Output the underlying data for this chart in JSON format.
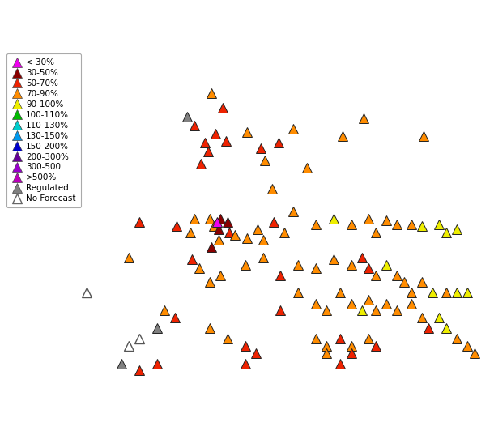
{
  "figsize": [
    6.1,
    5.53
  ],
  "dpi": 100,
  "map_extent": [
    -117.5,
    -103.5,
    35.5,
    45.5
  ],
  "legend_categories": [
    {
      "label": "< 30%",
      "color": "#EE00EE",
      "filled": true
    },
    {
      "label": "30-50%",
      "color": "#8B0000",
      "filled": true
    },
    {
      "label": "50-70%",
      "color": "#EE2200",
      "filled": true
    },
    {
      "label": "70-90%",
      "color": "#FF8C00",
      "filled": true
    },
    {
      "label": "90-100%",
      "color": "#EEEE00",
      "filled": true
    },
    {
      "label": "100-110%",
      "color": "#00BB00",
      "filled": true
    },
    {
      "label": "110-130%",
      "color": "#00CCCC",
      "filled": true
    },
    {
      "label": "130-150%",
      "color": "#0099EE",
      "filled": true
    },
    {
      "label": "150-200%",
      "color": "#0000CC",
      "filled": true
    },
    {
      "label": "200-300%",
      "color": "#660099",
      "filled": true
    },
    {
      "label": "300-500",
      "color": "#9900CC",
      "filled": true
    },
    {
      "label": ">500%",
      "color": "#BB00BB",
      "filled": true
    },
    {
      "label": "Regulated",
      "color": "#808080",
      "filled": true
    },
    {
      "label": "No Forecast",
      "color": "#808080",
      "filled": false
    }
  ],
  "gauges": [
    {
      "lon": -111.5,
      "lat": 44.2,
      "color": "#FF8C00",
      "outline": false
    },
    {
      "lon": -111.2,
      "lat": 43.8,
      "color": "#EE2200",
      "outline": false
    },
    {
      "lon": -112.2,
      "lat": 43.55,
      "color": "#808080",
      "outline": false
    },
    {
      "lon": -112.0,
      "lat": 43.3,
      "color": "#EE2200",
      "outline": false
    },
    {
      "lon": -111.4,
      "lat": 43.05,
      "color": "#EE2200",
      "outline": false
    },
    {
      "lon": -111.7,
      "lat": 42.8,
      "color": "#EE2200",
      "outline": false
    },
    {
      "lon": -111.6,
      "lat": 42.55,
      "color": "#EE2200",
      "outline": false
    },
    {
      "lon": -111.8,
      "lat": 42.2,
      "color": "#EE2200",
      "outline": false
    },
    {
      "lon": -111.1,
      "lat": 42.85,
      "color": "#EE2200",
      "outline": false
    },
    {
      "lon": -110.5,
      "lat": 43.1,
      "color": "#FF8C00",
      "outline": false
    },
    {
      "lon": -110.1,
      "lat": 42.65,
      "color": "#EE2200",
      "outline": false
    },
    {
      "lon": -110.0,
      "lat": 42.3,
      "color": "#FF8C00",
      "outline": false
    },
    {
      "lon": -109.6,
      "lat": 42.8,
      "color": "#EE2200",
      "outline": false
    },
    {
      "lon": -109.2,
      "lat": 43.2,
      "color": "#FF8C00",
      "outline": false
    },
    {
      "lon": -109.8,
      "lat": 41.5,
      "color": "#FF8C00",
      "outline": false
    },
    {
      "lon": -108.8,
      "lat": 42.1,
      "color": "#FF8C00",
      "outline": false
    },
    {
      "lon": -107.8,
      "lat": 43.0,
      "color": "#FF8C00",
      "outline": false
    },
    {
      "lon": -107.2,
      "lat": 43.5,
      "color": "#FF8C00",
      "outline": false
    },
    {
      "lon": -105.5,
      "lat": 43.0,
      "color": "#FF8C00",
      "outline": false
    },
    {
      "lon": -112.0,
      "lat": 40.65,
      "color": "#FF8C00",
      "outline": false
    },
    {
      "lon": -112.5,
      "lat": 40.45,
      "color": "#EE2200",
      "outline": false
    },
    {
      "lon": -112.1,
      "lat": 40.25,
      "color": "#FF8C00",
      "outline": false
    },
    {
      "lon": -111.55,
      "lat": 40.65,
      "color": "#FF8C00",
      "outline": false
    },
    {
      "lon": -111.45,
      "lat": 40.45,
      "color": "#FF8C00",
      "outline": false
    },
    {
      "lon": -111.25,
      "lat": 40.65,
      "color": "#8B0000",
      "outline": false
    },
    {
      "lon": -111.3,
      "lat": 40.35,
      "color": "#8B0000",
      "outline": false
    },
    {
      "lon": -111.05,
      "lat": 40.55,
      "color": "#8B0000",
      "outline": false
    },
    {
      "lon": -111.0,
      "lat": 40.25,
      "color": "#EE2200",
      "outline": false
    },
    {
      "lon": -111.3,
      "lat": 40.05,
      "color": "#FF8C00",
      "outline": false
    },
    {
      "lon": -111.5,
      "lat": 39.85,
      "color": "#8B0000",
      "outline": false
    },
    {
      "lon": -110.85,
      "lat": 40.2,
      "color": "#FF8C00",
      "outline": false
    },
    {
      "lon": -110.5,
      "lat": 40.1,
      "color": "#FF8C00",
      "outline": false
    },
    {
      "lon": -110.2,
      "lat": 40.35,
      "color": "#FF8C00",
      "outline": false
    },
    {
      "lon": -110.05,
      "lat": 40.05,
      "color": "#FF8C00",
      "outline": false
    },
    {
      "lon": -109.75,
      "lat": 40.55,
      "color": "#EE2200",
      "outline": false
    },
    {
      "lon": -109.45,
      "lat": 40.25,
      "color": "#FF8C00",
      "outline": false
    },
    {
      "lon": -109.2,
      "lat": 40.85,
      "color": "#FF8C00",
      "outline": false
    },
    {
      "lon": -108.55,
      "lat": 40.5,
      "color": "#FF8C00",
      "outline": false
    },
    {
      "lon": -108.05,
      "lat": 40.65,
      "color": "#EEEE00",
      "outline": false
    },
    {
      "lon": -107.55,
      "lat": 40.5,
      "color": "#FF8C00",
      "outline": false
    },
    {
      "lon": -107.05,
      "lat": 40.65,
      "color": "#FF8C00",
      "outline": false
    },
    {
      "lon": -106.85,
      "lat": 40.25,
      "color": "#FF8C00",
      "outline": false
    },
    {
      "lon": -106.55,
      "lat": 40.6,
      "color": "#FF8C00",
      "outline": false
    },
    {
      "lon": -106.25,
      "lat": 40.5,
      "color": "#FF8C00",
      "outline": false
    },
    {
      "lon": -105.85,
      "lat": 40.5,
      "color": "#FF8C00",
      "outline": false
    },
    {
      "lon": -105.55,
      "lat": 40.45,
      "color": "#EEEE00",
      "outline": false
    },
    {
      "lon": -105.05,
      "lat": 40.5,
      "color": "#EEEE00",
      "outline": false
    },
    {
      "lon": -104.85,
      "lat": 40.25,
      "color": "#EEEE00",
      "outline": false
    },
    {
      "lon": -104.55,
      "lat": 40.35,
      "color": "#EEEE00",
      "outline": false
    },
    {
      "lon": -112.05,
      "lat": 39.5,
      "color": "#EE2200",
      "outline": false
    },
    {
      "lon": -111.85,
      "lat": 39.25,
      "color": "#FF8C00",
      "outline": false
    },
    {
      "lon": -111.55,
      "lat": 38.85,
      "color": "#FF8C00",
      "outline": false
    },
    {
      "lon": -111.25,
      "lat": 39.05,
      "color": "#FF8C00",
      "outline": false
    },
    {
      "lon": -110.55,
      "lat": 39.35,
      "color": "#FF8C00",
      "outline": false
    },
    {
      "lon": -110.05,
      "lat": 39.55,
      "color": "#FF8C00",
      "outline": false
    },
    {
      "lon": -109.55,
      "lat": 39.05,
      "color": "#EE2200",
      "outline": false
    },
    {
      "lon": -109.05,
      "lat": 39.35,
      "color": "#FF8C00",
      "outline": false
    },
    {
      "lon": -108.55,
      "lat": 39.25,
      "color": "#FF8C00",
      "outline": false
    },
    {
      "lon": -108.05,
      "lat": 39.5,
      "color": "#FF8C00",
      "outline": false
    },
    {
      "lon": -107.55,
      "lat": 39.35,
      "color": "#FF8C00",
      "outline": false
    },
    {
      "lon": -107.25,
      "lat": 39.55,
      "color": "#EE2200",
      "outline": false
    },
    {
      "lon": -107.05,
      "lat": 39.25,
      "color": "#EE2200",
      "outline": false
    },
    {
      "lon": -106.85,
      "lat": 39.05,
      "color": "#FF8C00",
      "outline": false
    },
    {
      "lon": -106.55,
      "lat": 39.35,
      "color": "#EEEE00",
      "outline": false
    },
    {
      "lon": -106.25,
      "lat": 39.05,
      "color": "#FF8C00",
      "outline": false
    },
    {
      "lon": -106.05,
      "lat": 38.85,
      "color": "#FF8C00",
      "outline": false
    },
    {
      "lon": -105.85,
      "lat": 38.55,
      "color": "#FF8C00",
      "outline": false
    },
    {
      "lon": -105.55,
      "lat": 38.85,
      "color": "#FF8C00",
      "outline": false
    },
    {
      "lon": -105.25,
      "lat": 38.55,
      "color": "#EEEE00",
      "outline": false
    },
    {
      "lon": -104.85,
      "lat": 38.55,
      "color": "#FF8C00",
      "outline": false
    },
    {
      "lon": -104.55,
      "lat": 38.55,
      "color": "#EEEE00",
      "outline": false
    },
    {
      "lon": -104.25,
      "lat": 38.55,
      "color": "#EEEE00",
      "outline": false
    },
    {
      "lon": -112.85,
      "lat": 38.05,
      "color": "#FF8C00",
      "outline": false
    },
    {
      "lon": -112.55,
      "lat": 37.85,
      "color": "#EE2200",
      "outline": false
    },
    {
      "lon": -113.05,
      "lat": 37.55,
      "color": "#808080",
      "outline": false
    },
    {
      "lon": -113.55,
      "lat": 37.25,
      "color": "#808080",
      "outline": true
    },
    {
      "lon": -113.85,
      "lat": 37.05,
      "color": "#808080",
      "outline": true
    },
    {
      "lon": -114.05,
      "lat": 36.55,
      "color": "#808080",
      "outline": false
    },
    {
      "lon": -113.55,
      "lat": 36.35,
      "color": "#EE2200",
      "outline": false
    },
    {
      "lon": -113.05,
      "lat": 36.55,
      "color": "#EE2200",
      "outline": false
    },
    {
      "lon": -109.55,
      "lat": 38.05,
      "color": "#EE2200",
      "outline": false
    },
    {
      "lon": -109.05,
      "lat": 38.55,
      "color": "#FF8C00",
      "outline": false
    },
    {
      "lon": -108.55,
      "lat": 38.25,
      "color": "#FF8C00",
      "outline": false
    },
    {
      "lon": -108.25,
      "lat": 38.05,
      "color": "#FF8C00",
      "outline": false
    },
    {
      "lon": -107.85,
      "lat": 38.55,
      "color": "#FF8C00",
      "outline": false
    },
    {
      "lon": -107.55,
      "lat": 38.25,
      "color": "#FF8C00",
      "outline": false
    },
    {
      "lon": -107.25,
      "lat": 38.05,
      "color": "#EEEE00",
      "outline": false
    },
    {
      "lon": -107.05,
      "lat": 38.35,
      "color": "#FF8C00",
      "outline": false
    },
    {
      "lon": -106.85,
      "lat": 38.05,
      "color": "#FF8C00",
      "outline": false
    },
    {
      "lon": -106.55,
      "lat": 38.25,
      "color": "#FF8C00",
      "outline": false
    },
    {
      "lon": -106.25,
      "lat": 38.05,
      "color": "#FF8C00",
      "outline": false
    },
    {
      "lon": -105.85,
      "lat": 38.25,
      "color": "#FF8C00",
      "outline": false
    },
    {
      "lon": -105.55,
      "lat": 37.85,
      "color": "#FF8C00",
      "outline": false
    },
    {
      "lon": -105.35,
      "lat": 37.55,
      "color": "#EE2200",
      "outline": false
    },
    {
      "lon": -106.85,
      "lat": 37.05,
      "color": "#EE2200",
      "outline": false
    },
    {
      "lon": -107.05,
      "lat": 37.25,
      "color": "#FF8C00",
      "outline": false
    },
    {
      "lon": -107.55,
      "lat": 37.05,
      "color": "#FF8C00",
      "outline": false
    },
    {
      "lon": -107.85,
      "lat": 37.25,
      "color": "#EE2200",
      "outline": false
    },
    {
      "lon": -108.25,
      "lat": 37.05,
      "color": "#FF8C00",
      "outline": false
    },
    {
      "lon": -108.55,
      "lat": 37.25,
      "color": "#FF8C00",
      "outline": false
    },
    {
      "lon": -107.55,
      "lat": 36.85,
      "color": "#EE2200",
      "outline": false
    },
    {
      "lon": -107.85,
      "lat": 36.55,
      "color": "#EE2200",
      "outline": false
    },
    {
      "lon": -108.25,
      "lat": 36.85,
      "color": "#FF8C00",
      "outline": false
    },
    {
      "lon": -104.55,
      "lat": 37.25,
      "color": "#FF8C00",
      "outline": false
    },
    {
      "lon": -104.85,
      "lat": 37.55,
      "color": "#EEEE00",
      "outline": false
    },
    {
      "lon": -105.05,
      "lat": 37.85,
      "color": "#EEEE00",
      "outline": false
    },
    {
      "lon": -104.25,
      "lat": 37.05,
      "color": "#FF8C00",
      "outline": false
    },
    {
      "lon": -104.05,
      "lat": 36.85,
      "color": "#FF8C00",
      "outline": false
    },
    {
      "lon": -111.55,
      "lat": 37.55,
      "color": "#FF8C00",
      "outline": false
    },
    {
      "lon": -111.05,
      "lat": 37.25,
      "color": "#FF8C00",
      "outline": false
    },
    {
      "lon": -110.55,
      "lat": 37.05,
      "color": "#EE2200",
      "outline": false
    },
    {
      "lon": -110.55,
      "lat": 36.55,
      "color": "#EE2200",
      "outline": false
    },
    {
      "lon": -110.25,
      "lat": 36.85,
      "color": "#EE2200",
      "outline": false
    },
    {
      "lon": -113.55,
      "lat": 40.55,
      "color": "#EE2200",
      "outline": false
    },
    {
      "lon": -113.85,
      "lat": 39.55,
      "color": "#FF8C00",
      "outline": false
    },
    {
      "lon": -115.05,
      "lat": 38.55,
      "color": "#808080",
      "outline": true
    },
    {
      "lon": -111.35,
      "lat": 40.55,
      "color": "#EE00EE",
      "outline": false
    }
  ],
  "marker_size": 8,
  "marker_edge_width": 0.7,
  "lake_color": "#33BBCC",
  "river_color": "#55AACC"
}
